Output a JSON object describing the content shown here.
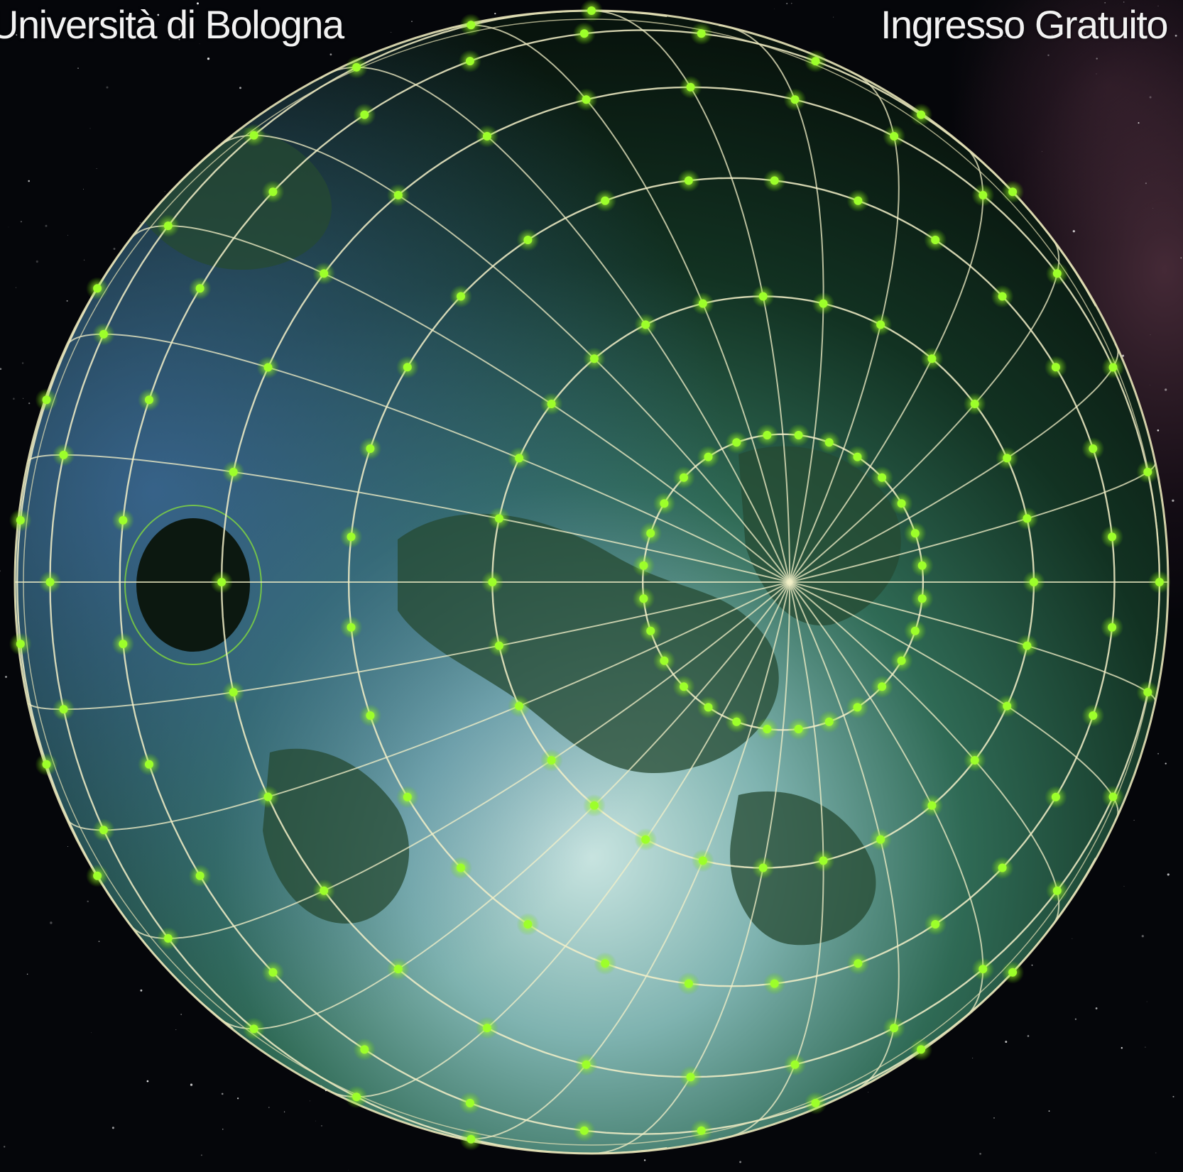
{
  "header": {
    "left_caption": "Università di Bologna",
    "right_caption": "Ingresso Gratuito"
  },
  "scene": {
    "subject": "globe-with-satellite-network-icon",
    "accent_color": "#9dff2a",
    "mesh_color": "#f3f0c8"
  }
}
